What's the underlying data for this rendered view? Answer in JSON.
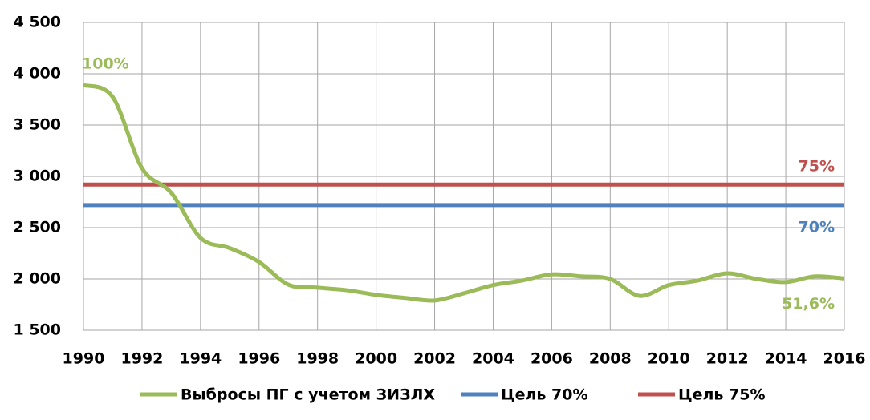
{
  "chart_data": {
    "type": "line",
    "x": [
      1990,
      1991,
      1992,
      1993,
      1994,
      1995,
      1996,
      1997,
      1998,
      1999,
      2000,
      2001,
      2002,
      2003,
      2004,
      2005,
      2006,
      2007,
      2008,
      2009,
      2010,
      2011,
      2012,
      2013,
      2014,
      2015,
      2016
    ],
    "series": [
      {
        "name": "Выбросы ПГ с учетом ЗИЗЛХ",
        "color": "#9bbb59",
        "values": [
          3890,
          3773,
          3080,
          2840,
          2400,
          2300,
          2165,
          1945,
          1915,
          1890,
          1845,
          1815,
          1790,
          1860,
          1940,
          1985,
          2045,
          2025,
          2000,
          1835,
          1940,
          1985,
          2055,
          2000,
          1970,
          2025,
          2005
        ]
      },
      {
        "name": "Цель 70%",
        "color": "#4f81bd",
        "values": [
          2720,
          2720,
          2720,
          2720,
          2720,
          2720,
          2720,
          2720,
          2720,
          2720,
          2720,
          2720,
          2720,
          2720,
          2720,
          2720,
          2720,
          2720,
          2720,
          2720,
          2720,
          2720,
          2720,
          2720,
          2720,
          2720,
          2720
        ]
      },
      {
        "name": "Цель 75%",
        "color": "#c0504d",
        "values": [
          2920,
          2920,
          2920,
          2920,
          2920,
          2920,
          2920,
          2920,
          2920,
          2920,
          2920,
          2920,
          2920,
          2920,
          2920,
          2920,
          2920,
          2920,
          2920,
          2920,
          2920,
          2920,
          2920,
          2920,
          2920,
          2920,
          2920
        ]
      }
    ],
    "xlim": [
      1990,
      2016
    ],
    "xticks": [
      1990,
      1992,
      1994,
      1996,
      1998,
      2000,
      2002,
      2004,
      2006,
      2008,
      2010,
      2012,
      2014,
      2016
    ],
    "ylim": [
      1500,
      4500
    ],
    "yticks": [
      {
        "value": 1500,
        "label": "1 500"
      },
      {
        "value": 2000,
        "label": "2 000"
      },
      {
        "value": 2500,
        "label": "2 500"
      },
      {
        "value": 3000,
        "label": "3 000"
      },
      {
        "value": 3500,
        "label": "3 500"
      },
      {
        "value": 4000,
        "label": "4 000"
      },
      {
        "value": 4500,
        "label": "4 500"
      }
    ],
    "grid": true,
    "legend": "bottom",
    "annotations": [
      {
        "text": "100%",
        "x": 1990,
        "y": 3890,
        "color": "#9bbb59"
      },
      {
        "text": "75%",
        "x": 2016,
        "y": 2920,
        "color": "#c0504d"
      },
      {
        "text": "70%",
        "x": 2016,
        "y": 2720,
        "color": "#4f81bd"
      },
      {
        "text": "51,6%",
        "x": 2016,
        "y": 2005,
        "color": "#9bbb59"
      }
    ]
  }
}
